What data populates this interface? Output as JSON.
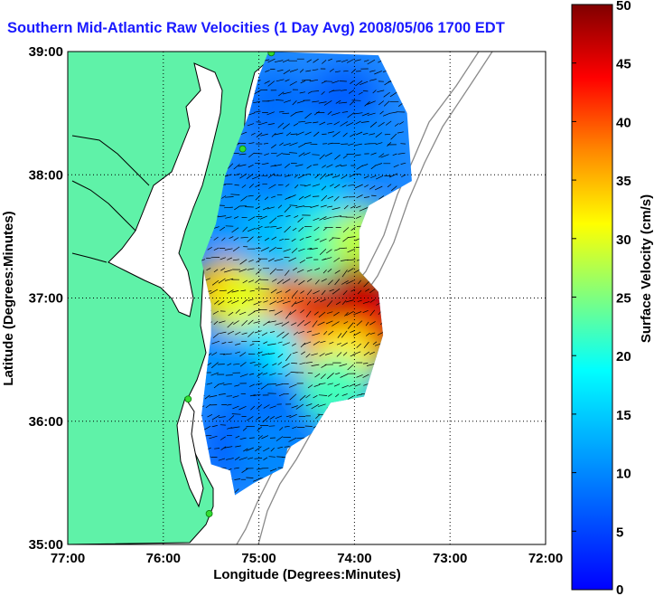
{
  "title": "Southern Mid-Atlantic Raw Velocities (1 Day Avg) 2008/05/06 1700 EDT",
  "colors": {
    "title": "#1a1aff",
    "land": "#5ff2a8",
    "water_bg": "#ffffff",
    "coast_line": "#000000",
    "bathymetry_line": "#8a8a8a",
    "station_marker": "#33dd33",
    "vector": "#000000"
  },
  "chart_data": {
    "type": "heatmap",
    "title": "Southern Mid-Atlantic Raw Velocities (1 Day Avg) 2008/05/06 1700 EDT",
    "xlabel": "Longitude (Degrees:Minutes)",
    "ylabel": "Latitude (Degrees:Minutes)",
    "xlim": [
      -77,
      -72
    ],
    "ylim": [
      35,
      39
    ],
    "x_ticks": [
      -77,
      -76,
      -75,
      -74,
      -73,
      -72
    ],
    "x_tick_labels": [
      "77:00",
      "76:00",
      "75:00",
      "74:00",
      "73:00",
      "72:00"
    ],
    "y_ticks": [
      35,
      36,
      37,
      38,
      39
    ],
    "y_tick_labels": [
      "35:00",
      "36:00",
      "37:00",
      "38:00",
      "39:00"
    ],
    "grid": true,
    "grid_style": "dotted",
    "colorbar": {
      "label": "Surface Velocity (cm/s)",
      "min": 0,
      "max": 50,
      "ticks": [
        0,
        5,
        10,
        15,
        20,
        25,
        30,
        35,
        40,
        45,
        50
      ],
      "colormap": "jet",
      "placement": "right"
    },
    "coverage_outline": [
      [
        -74.9,
        39.0
      ],
      [
        -73.75,
        38.97
      ],
      [
        -73.45,
        38.5
      ],
      [
        -73.4,
        37.95
      ],
      [
        -73.85,
        37.75
      ],
      [
        -73.95,
        37.55
      ],
      [
        -73.95,
        37.22
      ],
      [
        -73.75,
        37.05
      ],
      [
        -73.7,
        36.7
      ],
      [
        -73.9,
        36.2
      ],
      [
        -74.25,
        36.15
      ],
      [
        -74.45,
        35.9
      ],
      [
        -74.7,
        35.78
      ],
      [
        -74.75,
        35.62
      ],
      [
        -75.05,
        35.5
      ],
      [
        -75.25,
        35.4
      ],
      [
        -75.3,
        35.6
      ],
      [
        -75.5,
        35.65
      ],
      [
        -75.6,
        36.05
      ],
      [
        -75.5,
        36.7
      ],
      [
        -75.5,
        36.95
      ],
      [
        -75.6,
        37.3
      ],
      [
        -75.45,
        37.6
      ],
      [
        -75.35,
        38.0
      ],
      [
        -75.1,
        38.5
      ],
      [
        -75.0,
        38.8
      ]
    ],
    "velocity_regions": [
      {
        "lon": -74.8,
        "lat": 38.55,
        "speed": 8
      },
      {
        "lon": -74.1,
        "lat": 38.6,
        "speed": 7
      },
      {
        "lon": -73.9,
        "lat": 38.2,
        "speed": 10
      },
      {
        "lon": -74.5,
        "lat": 38.2,
        "speed": 10
      },
      {
        "lon": -75.0,
        "lat": 37.9,
        "speed": 9
      },
      {
        "lon": -75.2,
        "lat": 37.6,
        "speed": 11
      },
      {
        "lon": -74.8,
        "lat": 37.5,
        "speed": 14
      },
      {
        "lon": -74.3,
        "lat": 37.7,
        "speed": 15
      },
      {
        "lon": -74.3,
        "lat": 37.4,
        "speed": 22
      },
      {
        "lon": -73.9,
        "lat": 37.45,
        "speed": 28
      },
      {
        "lon": -75.35,
        "lat": 37.05,
        "speed": 35
      },
      {
        "lon": -75.1,
        "lat": 36.95,
        "speed": 30
      },
      {
        "lon": -74.6,
        "lat": 36.9,
        "speed": 38
      },
      {
        "lon": -74.3,
        "lat": 36.85,
        "speed": 46
      },
      {
        "lon": -73.95,
        "lat": 37.0,
        "speed": 48
      },
      {
        "lon": -73.85,
        "lat": 36.75,
        "speed": 45
      },
      {
        "lon": -74.4,
        "lat": 36.6,
        "speed": 40
      },
      {
        "lon": -74.1,
        "lat": 36.5,
        "speed": 32
      },
      {
        "lon": -74.9,
        "lat": 36.55,
        "speed": 18
      },
      {
        "lon": -75.3,
        "lat": 36.45,
        "speed": 11
      },
      {
        "lon": -75.1,
        "lat": 36.15,
        "speed": 9
      },
      {
        "lon": -74.7,
        "lat": 36.1,
        "speed": 8
      },
      {
        "lon": -75.2,
        "lat": 35.8,
        "speed": 7
      },
      {
        "lon": -74.9,
        "lat": 35.75,
        "speed": 10
      },
      {
        "lon": -74.2,
        "lat": 36.25,
        "speed": 22
      }
    ],
    "stations": [
      {
        "lon": -74.87,
        "lat": 38.99
      },
      {
        "lon": -75.17,
        "lat": 38.21
      },
      {
        "lon": -75.74,
        "lat": 36.18
      },
      {
        "lon": -75.52,
        "lat": 35.25
      }
    ]
  }
}
